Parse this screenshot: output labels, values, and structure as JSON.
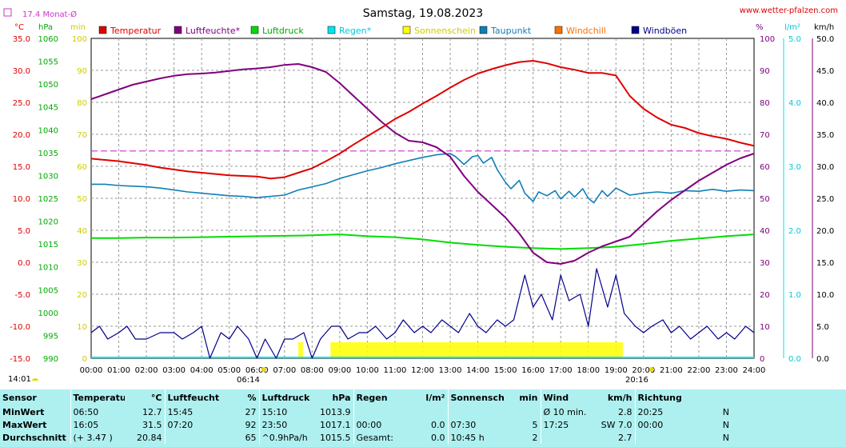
{
  "header": {
    "title": "Samstag, 19.08.2023",
    "site": "www.wetter-pfalzen.com",
    "month_avg": "17.4 Monat-Ø",
    "unit_celsius": "°C",
    "unit_hpa": "hPa",
    "unit_min": "min",
    "unit_percent": "%",
    "unit_lm2": "l/m²",
    "unit_kmh": "km/h"
  },
  "colors": {
    "temperature": "#e00000",
    "humidity": "#800080",
    "pressure": "#00dd00",
    "rain": "#00e5ee",
    "sunshine": "#ffff00",
    "dewpoint": "#0f7fb8",
    "windchill": "#ff7000",
    "gusts": "#00008b",
    "monthavg": "#cc33cc",
    "stats_bg": "#aef0f0"
  },
  "chart_data": {
    "type": "line",
    "legend": [
      "Temperatur",
      "Luftfeuchte*",
      "Luftdruck",
      "Regen*",
      "Sonnenschein",
      "Taupunkt",
      "Windchill",
      "Windböen"
    ],
    "legend_placement": "top",
    "grid": true,
    "x_ticks": [
      "00:00",
      "01:00",
      "02:00",
      "03:00",
      "04:00",
      "05:00",
      "06:00",
      "07:00",
      "08:00",
      "09:00",
      "10:00",
      "11:00",
      "12:00",
      "13:00",
      "14:00",
      "15:00",
      "16:00",
      "17:00",
      "18:00",
      "19:00",
      "20:00",
      "21:00",
      "22:00",
      "23:00",
      "24:00"
    ],
    "axes": {
      "temperature": {
        "label": "°C",
        "range": [
          -15,
          35
        ],
        "ticks": [
          "35.0",
          "30.0",
          "25.0",
          "20.0",
          "15.0",
          "10.0",
          "5.0",
          "0.0",
          "-5.0",
          "-10.0",
          "-15.0"
        ]
      },
      "pressure": {
        "label": "hPa",
        "range": [
          990,
          1060
        ],
        "ticks": [
          "1060",
          "1055",
          "1050",
          "1045",
          "1040",
          "1035",
          "1030",
          "1025",
          "1020",
          "1015",
          "1010",
          "1005",
          "1000",
          "995",
          "990"
        ]
      },
      "sunshine": {
        "label": "min",
        "range": [
          0,
          100
        ],
        "ticks": [
          "100",
          "90",
          "80",
          "70",
          "60",
          "50",
          "40",
          "30",
          "20",
          "10",
          "0"
        ]
      },
      "humidity": {
        "label": "%",
        "range": [
          0,
          100
        ],
        "ticks": [
          "100",
          "90",
          "80",
          "70",
          "60",
          "50",
          "40",
          "30",
          "20",
          "10",
          "0"
        ]
      },
      "rain": {
        "label": "l/m²",
        "range": [
          0,
          5
        ],
        "ticks": [
          "5.0",
          "4.0",
          "3.0",
          "2.0",
          "1.0",
          "0.0"
        ]
      },
      "wind": {
        "label": "km/h",
        "range": [
          0,
          50
        ],
        "ticks": [
          "50.0",
          "45.0",
          "40.0",
          "35.0",
          "30.0",
          "25.0",
          "20.0",
          "15.0",
          "10.0",
          "5.0",
          "0.0"
        ]
      }
    },
    "sunrise": "06:14",
    "sunset": "20:16",
    "moonrise": "14:01",
    "month_avg_temperature": 17.4,
    "series": [
      {
        "name": "Temperatur",
        "axis": "temperature",
        "x": [
          0,
          0.5,
          1,
          1.5,
          2,
          2.5,
          3,
          3.5,
          4,
          4.5,
          5,
          5.5,
          6,
          6.5,
          7,
          7.5,
          8,
          8.5,
          9,
          9.5,
          10,
          10.5,
          11,
          11.5,
          12,
          12.5,
          13,
          13.5,
          14,
          14.5,
          15,
          15.5,
          16,
          16.5,
          17,
          17.5,
          18,
          18.5,
          19,
          19.5,
          20,
          20.5,
          21,
          21.5,
          22,
          22.5,
          23,
          23.5,
          24
        ],
        "y": [
          16.2,
          16,
          15.8,
          15.5,
          15.2,
          14.8,
          14.5,
          14.2,
          14,
          13.8,
          13.6,
          13.5,
          13.4,
          13.1,
          13.3,
          14,
          14.7,
          15.8,
          17,
          18.4,
          19.7,
          21,
          22.4,
          23.5,
          24.8,
          26,
          27.3,
          28.5,
          29.5,
          30.2,
          30.8,
          31.3,
          31.5,
          31.1,
          30.5,
          30.1,
          29.6,
          29.6,
          29.2,
          26,
          24,
          22.6,
          21.5,
          21,
          20.2,
          19.7,
          19.3,
          18.7,
          18.2
        ]
      },
      {
        "name": "Luftfeuchte*",
        "axis": "humidity",
        "x": [
          0,
          0.5,
          1,
          1.5,
          2,
          2.5,
          3,
          3.5,
          4,
          4.5,
          5,
          5.5,
          6,
          6.5,
          7,
          7.5,
          8,
          8.5,
          9,
          9.5,
          10,
          10.5,
          11,
          11.5,
          12,
          12.5,
          13,
          13.5,
          14,
          14.5,
          15,
          15.5,
          16,
          16.5,
          17,
          17.5,
          18,
          18.5,
          19,
          19.5,
          20,
          20.5,
          21,
          21.5,
          22,
          22.5,
          23,
          23.5,
          24
        ],
        "y": [
          81,
          82.5,
          84,
          85.5,
          86.5,
          87.5,
          88.3,
          88.8,
          89,
          89.3,
          89.8,
          90.3,
          90.6,
          91,
          91.7,
          92,
          91,
          89.5,
          86,
          82,
          78,
          74,
          70.5,
          68,
          67.5,
          66,
          63,
          57,
          52,
          48,
          44,
          39,
          33,
          30,
          29.5,
          30.5,
          33,
          35,
          36.5,
          38,
          42,
          46,
          49.5,
          52.5,
          55.5,
          58,
          60.5,
          62.5,
          64
        ]
      },
      {
        "name": "Luftdruck",
        "axis": "pressure",
        "x": [
          0,
          1,
          2,
          3,
          4,
          5,
          6,
          7,
          8,
          9,
          10,
          11,
          12,
          13,
          14,
          15,
          16,
          17,
          18,
          19,
          20,
          21,
          22,
          23,
          24
        ],
        "y": [
          1016.3,
          1016.3,
          1016.4,
          1016.4,
          1016.5,
          1016.6,
          1016.7,
          1016.8,
          1016.9,
          1017.1,
          1016.7,
          1016.5,
          1016,
          1015.3,
          1014.8,
          1014.4,
          1014.1,
          1013.9,
          1014.1,
          1014.4,
          1015,
          1015.7,
          1016.2,
          1016.7,
          1017.1
        ]
      },
      {
        "name": "Taupunkt",
        "axis": "temperature",
        "x": [
          0,
          0.5,
          1,
          1.5,
          2,
          2.5,
          3,
          3.5,
          4,
          4.5,
          5,
          5.5,
          6,
          6.5,
          7,
          7.5,
          8,
          8.5,
          9,
          9.5,
          10,
          10.5,
          11,
          11.5,
          12,
          12.5,
          13,
          13.2,
          13.5,
          13.8,
          14,
          14.2,
          14.5,
          14.7,
          15,
          15.2,
          15.5,
          15.7,
          16,
          16.2,
          16.5,
          16.8,
          17,
          17.3,
          17.5,
          17.8,
          18,
          18.2,
          18.5,
          18.7,
          19,
          19.5,
          20,
          20.5,
          21,
          21.5,
          22,
          22.5,
          23,
          23.5,
          24
        ],
        "y": [
          12.2,
          12.2,
          12,
          11.9,
          11.8,
          11.6,
          11.3,
          11,
          10.8,
          10.6,
          10.4,
          10.3,
          10.1,
          10.3,
          10.5,
          11.3,
          11.8,
          12.3,
          13.1,
          13.7,
          14.3,
          14.8,
          15.4,
          15.9,
          16.4,
          16.8,
          17,
          16.5,
          15.3,
          16.5,
          16.7,
          15.5,
          16.4,
          14.5,
          12.5,
          11.5,
          12.8,
          10.8,
          9.5,
          11,
          10.4,
          11.2,
          9.9,
          11.1,
          10.2,
          11.5,
          10,
          9.3,
          11.2,
          10.3,
          11.6,
          10.5,
          10.8,
          11,
          10.8,
          11.2,
          11.1,
          11.4,
          11.1,
          11.3,
          11.2
        ]
      },
      {
        "name": "Windböen",
        "axis": "wind",
        "x": [
          0,
          0.3,
          0.6,
          1,
          1.3,
          1.6,
          2,
          2.5,
          3,
          3.3,
          3.7,
          4,
          4.3,
          4.7,
          5,
          5.3,
          5.7,
          6,
          6.3,
          6.7,
          7,
          7.3,
          7.7,
          8,
          8.3,
          8.7,
          9,
          9.3,
          9.7,
          10,
          10.3,
          10.7,
          11,
          11.3,
          11.7,
          12,
          12.3,
          12.7,
          13,
          13.3,
          13.7,
          14,
          14.3,
          14.7,
          15,
          15.3,
          15.7,
          16,
          16.3,
          16.7,
          17,
          17.3,
          17.7,
          18,
          18.3,
          18.7,
          19,
          19.3,
          19.7,
          20,
          20.3,
          20.7,
          21,
          21.3,
          21.7,
          22,
          22.3,
          22.7,
          23,
          23.3,
          23.7,
          24
        ],
        "y": [
          4,
          5,
          3,
          4,
          5,
          3,
          3,
          4,
          4,
          3,
          4,
          5,
          0,
          4,
          3,
          5,
          3,
          0,
          3,
          0,
          3,
          3,
          4,
          0,
          3,
          5,
          5,
          3,
          4,
          4,
          5,
          3,
          4,
          6,
          4,
          5,
          4,
          6,
          5,
          4,
          7,
          5,
          4,
          6,
          5,
          6,
          13,
          8,
          10,
          6,
          13,
          9,
          10,
          5,
          14,
          8,
          13,
          7,
          5,
          4,
          5,
          6,
          4,
          5,
          3,
          4,
          5,
          3,
          4,
          3,
          5,
          4
        ]
      }
    ],
    "bars": [
      {
        "name": "Sonnenschein",
        "axis": "sunshine",
        "x_start": "07:30",
        "x_end": "07:40",
        "value": 5
      },
      {
        "name": "Sonnenschein",
        "axis": "sunshine",
        "x_start": "08:40",
        "x_end": "19:15",
        "value": 5
      }
    ]
  },
  "stats": {
    "headers": {
      "sensor": "Sensor",
      "temp": "Temperatur",
      "temp_unit": "°C",
      "hum": "Luftfeuchte",
      "hum_unit": "%",
      "press": "Luftdruck",
      "press_unit": "hPa",
      "rain": "Regen",
      "rain_unit": "l/m²",
      "sun": "Sonnenschein",
      "sun_unit": "min",
      "wind": "Wind",
      "wind_unit": "km/h",
      "dir": "Richtung"
    },
    "rows": [
      {
        "label": "MinWert",
        "temp_time": "06:50",
        "temp_val": "12.7",
        "hum_time": "15:45",
        "hum_val": "27",
        "press_time": "15:10",
        "press_val": "1013.9",
        "rain_time": "",
        "rain_val": "",
        "sun_time": "",
        "sun_val": "",
        "wind_time": "Ø 10 min.",
        "wind_val": "2.8",
        "dir_time": "20:25",
        "dir_val": "N"
      },
      {
        "label": "MaxWert",
        "temp_time": "16:05",
        "temp_val": "31.5",
        "hum_time": "07:20",
        "hum_val": "92",
        "press_time": "23:50",
        "press_val": "1017.1",
        "rain_time": "00:00",
        "rain_val": "0.0",
        "sun_time": "07:30",
        "sun_val": "5",
        "wind_time": "17:25",
        "wind_val": "SW 7.0",
        "dir_time": "00:00",
        "dir_val": "N"
      },
      {
        "label": "Durchschnitt",
        "temp_time": "(+ 3.47 )",
        "temp_val": "20.84",
        "hum_time": "",
        "hum_val": "65",
        "press_time": "^0.9hPa/h",
        "press_val": "1015.5",
        "rain_time": "Gesamt:",
        "rain_val": "0.0",
        "sun_time": "10:45 h",
        "sun_val": "2",
        "wind_time": "",
        "wind_val": "2.7",
        "dir_time": "",
        "dir_val": "N"
      }
    ]
  }
}
